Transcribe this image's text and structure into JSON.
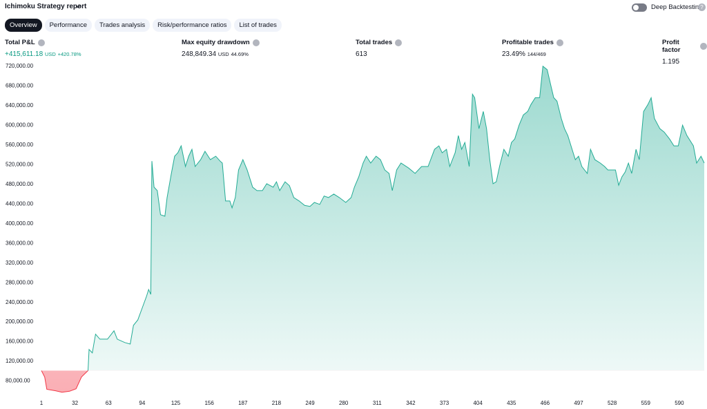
{
  "header": {
    "title": "Ichimoku Strategy report",
    "toggle_label": "Deep Backtesting"
  },
  "tabs": [
    "Overview",
    "Performance",
    "Trades analysis",
    "Risk/performance ratios",
    "List of trades"
  ],
  "metrics": [
    {
      "label": "Total P&L",
      "value": "+415,611.18",
      "unit": "USD",
      "extra": "+420.78%"
    },
    {
      "label": "Max equity drawdown",
      "value": "248,849.34",
      "unit": "USD",
      "extra": "44.69%"
    },
    {
      "label": "Total trades",
      "value": "613"
    },
    {
      "label": "Profitable trades",
      "value": "23.49%",
      "extra": "144/469"
    },
    {
      "label": "Profit factor",
      "value": "1.195"
    }
  ],
  "chart_data": {
    "type": "area",
    "color": "#22ab94",
    "negative_color": "#f23645",
    "xlim": [
      1,
      613
    ],
    "xticks": [
      1,
      32,
      63,
      94,
      125,
      156,
      187,
      218,
      249,
      280,
      311,
      342,
      373,
      404,
      435,
      466,
      497,
      528,
      559,
      590
    ],
    "ylim": [
      50000,
      730000
    ],
    "yticks": [
      {
        "value": 80000,
        "label": "80,000.00"
      },
      {
        "value": 120000,
        "label": "120,000.00"
      },
      {
        "value": 160000,
        "label": "160,000.00"
      },
      {
        "value": 200000,
        "label": "200,000.00"
      },
      {
        "value": 240000,
        "label": "240,000.00"
      },
      {
        "value": 280000,
        "label": "280,000.00"
      },
      {
        "value": 320000,
        "label": "320,000.00"
      },
      {
        "value": 360000,
        "label": "360,000.00"
      },
      {
        "value": 400000,
        "label": "400,000.00"
      },
      {
        "value": 440000,
        "label": "440,000.00"
      },
      {
        "value": 480000,
        "label": "480,000.00"
      },
      {
        "value": 520000,
        "label": "520,000.00"
      },
      {
        "value": 560000,
        "label": "560,000.00"
      },
      {
        "value": 600000,
        "label": "600,000.00"
      },
      {
        "value": 640000,
        "label": "640,000.00"
      },
      {
        "value": 680000,
        "label": "680,000.00"
      },
      {
        "value": 720000,
        "label": "720,000.00"
      }
    ],
    "x": [
      1,
      4,
      6,
      14,
      20,
      27,
      33,
      38,
      44,
      45,
      48,
      51,
      55,
      62,
      68,
      71,
      78,
      83,
      86,
      90,
      94,
      98,
      100,
      102,
      103,
      105,
      108,
      111,
      115,
      117,
      121,
      124,
      127,
      130,
      134,
      137,
      140,
      143,
      148,
      152,
      157,
      162,
      166,
      168,
      171,
      175,
      177,
      180,
      183,
      187,
      191,
      196,
      200,
      205,
      209,
      215,
      218,
      221,
      226,
      230,
      234,
      239,
      244,
      249,
      253,
      258,
      262,
      266,
      271,
      276,
      282,
      287,
      290,
      294,
      298,
      301,
      305,
      310,
      314,
      318,
      322,
      325,
      329,
      333,
      340,
      346,
      352,
      358,
      364,
      368,
      371,
      375,
      378,
      383,
      386,
      389,
      392,
      396,
      399,
      401,
      405,
      409,
      412,
      415,
      418,
      421,
      424,
      428,
      432,
      435,
      438,
      442,
      446,
      450,
      453,
      457,
      461,
      464,
      468,
      471,
      474,
      477,
      481,
      484,
      487,
      491,
      494,
      497,
      500,
      505,
      508,
      512,
      517,
      521,
      524,
      531,
      534,
      537,
      540,
      543,
      546,
      550,
      553,
      557,
      561,
      564,
      567,
      572,
      576,
      581,
      585,
      589,
      593,
      597,
      603,
      606,
      610,
      613
    ],
    "values": [
      100000,
      87000,
      62000,
      59000,
      56000,
      58000,
      63000,
      87000,
      100000,
      143000,
      136000,
      174000,
      164000,
      164000,
      181000,
      164000,
      157000,
      154000,
      192000,
      203000,
      227000,
      251000,
      265000,
      255000,
      526000,
      473000,
      466000,
      417000,
      414000,
      452000,
      501000,
      536000,
      543000,
      557000,
      515000,
      536000,
      550000,
      515000,
      529000,
      546000,
      529000,
      536000,
      526000,
      522000,
      445000,
      445000,
      431000,
      452000,
      508000,
      529000,
      508000,
      473000,
      466000,
      466000,
      480000,
      473000,
      484000,
      466000,
      484000,
      476000,
      452000,
      445000,
      436000,
      434000,
      442000,
      438000,
      455000,
      452000,
      459000,
      452000,
      442000,
      452000,
      473000,
      494000,
      522000,
      536000,
      522000,
      536000,
      529000,
      508000,
      501000,
      466000,
      508000,
      522000,
      512000,
      501000,
      515000,
      515000,
      550000,
      557000,
      543000,
      550000,
      515000,
      543000,
      578000,
      550000,
      564000,
      515000,
      662000,
      655000,
      592000,
      627000,
      592000,
      529000,
      480000,
      484000,
      515000,
      550000,
      536000,
      564000,
      571000,
      599000,
      620000,
      627000,
      641000,
      655000,
      655000,
      719000,
      712000,
      683000,
      655000,
      648000,
      613000,
      592000,
      578000,
      550000,
      529000,
      536000,
      515000,
      501000,
      550000,
      529000,
      522000,
      515000,
      508000,
      508000,
      477000,
      494000,
      504000,
      522000,
      501000,
      550000,
      529000,
      627000,
      641000,
      655000,
      613000,
      592000,
      585000,
      571000,
      557000,
      557000,
      599000,
      578000,
      557000,
      522000,
      536000,
      522000
    ]
  }
}
